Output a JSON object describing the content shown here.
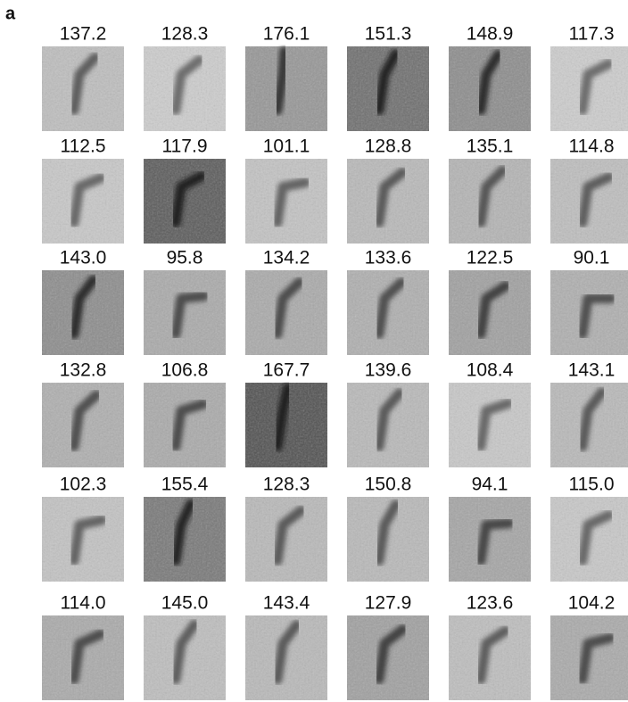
{
  "panel_label": "a",
  "grid": {
    "rows": [
      [
        "137.2",
        "128.3",
        "176.1",
        "151.3",
        "148.9",
        "117.3"
      ],
      [
        "112.5",
        "117.9",
        "101.1",
        "128.8",
        "135.1",
        "114.8"
      ],
      [
        "143.0",
        "95.8",
        "134.2",
        "133.6",
        "122.5",
        "90.1"
      ],
      [
        "132.8",
        "106.8",
        "167.7",
        "139.6",
        "108.4",
        "143.1"
      ],
      [
        "102.3",
        "155.4",
        "128.3",
        "150.8",
        "94.1",
        "115.0"
      ],
      [
        "114.0",
        "145.0",
        "143.4",
        "127.9",
        "123.6",
        "104.2"
      ]
    ]
  }
}
